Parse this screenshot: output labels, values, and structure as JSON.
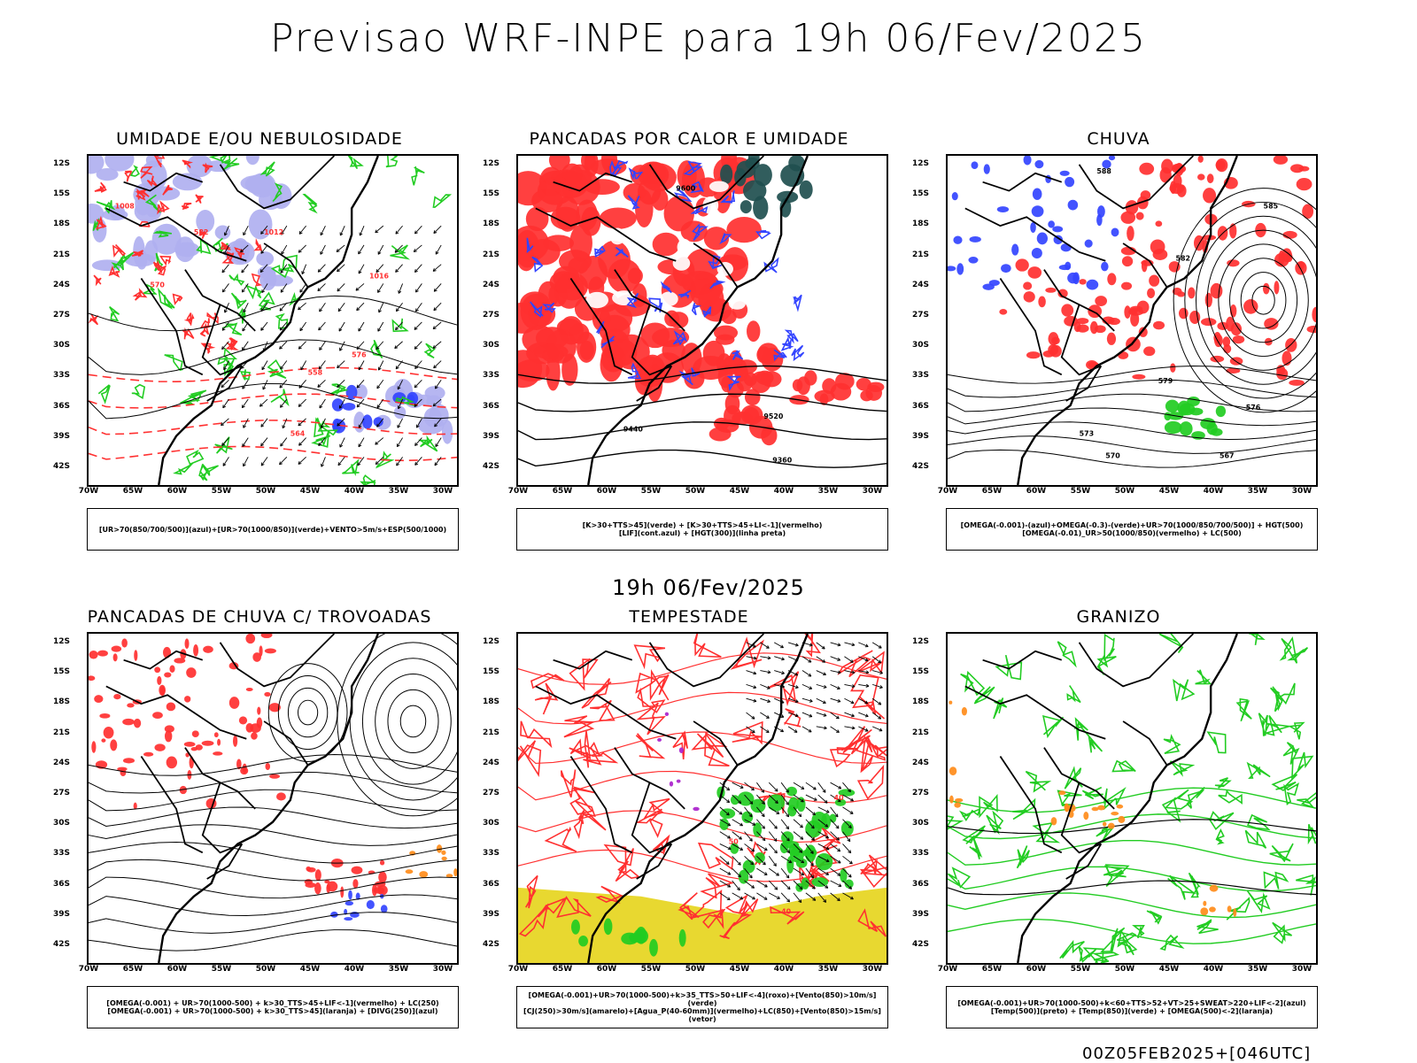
{
  "header": {
    "title": "Previsao WRF-INPE  para 19h 06/Fev/2025"
  },
  "mid_title": "19h 06/Fev/2025",
  "footer": "00Z05FEB2025+[046UTC]",
  "axes": {
    "lat_labels": [
      "12S",
      "15S",
      "18S",
      "21S",
      "24S",
      "27S",
      "30S",
      "33S",
      "36S",
      "39S",
      "42S"
    ],
    "lon_labels": [
      "70W",
      "65W",
      "60W",
      "55W",
      "50W",
      "45W",
      "40W",
      "35W",
      "30W"
    ]
  },
  "colors": {
    "red": "#ff3030",
    "green": "#22cc22",
    "blue": "#3344ff",
    "lavender": "#b0b0f0",
    "yellow": "#e8d830",
    "teal": "#1f4f4f",
    "orange": "#ff8c1a",
    "black": "#000000"
  },
  "panels": [
    {
      "title": "UMIDADE E/OU NEBULOSIDADE",
      "legend": [
        "[UR>70(850/700/500)](azul)+[UR>70(1000/850)](verde)+VENTO>5m/s+ESP(500/1000)"
      ],
      "contour_labels": [
        "1008",
        "1012",
        "1016",
        "570",
        "576",
        "564",
        "558",
        "582"
      ]
    },
    {
      "title": "PANCADAS POR CALOR E UMIDADE",
      "legend": [
        "[K>30+TTS>45](verde) + [K>30+TTS>45+LI<-1](vermelho)",
        "[LIF](cont.azul) + [HGT(300)](linha preta)"
      ],
      "contour_labels": [
        "9600",
        "9520",
        "9440",
        "9360"
      ]
    },
    {
      "title": "CHUVA",
      "legend": [
        "[OMEGA(-0.001)-(azul)+OMEGA(-0.3)-(verde)+UR>70(1000/850/700/500)] + HGT(500)",
        "[OMEGA(-0.01)_UR>50(1000/850)(vermelho) + LC(500)"
      ],
      "contour_labels": [
        "588",
        "585",
        "582",
        "579",
        "576",
        "573",
        "570",
        "567"
      ]
    },
    {
      "title": "PANCADAS DE CHUVA C/ TROVOADAS",
      "legend": [
        "[OMEGA(-0.001) + UR>70(1000-500) + k>30_TTS>45+LIF<-1](vermelho) + LC(250)",
        "[OMEGA(-0.001) + UR>70(1000-500) + k>30_TTS>45](laranja) + [DIVG(250)](azul)"
      ],
      "contour_labels": []
    },
    {
      "title": "TEMPESTADE",
      "legend": [
        "[OMEGA(-0.001)+UR>70(1000-500)+k>35_TTS>50+LIF<-4](roxo)+[Vento(850)>10m/s](verde)",
        "[CJ(250)>30m/s](amarelo)+[Agua_P(40-60mm)](vermelho)+LC(850)+[Vento(850)>15m/s](vetor)"
      ],
      "contour_labels": [
        "40",
        "50",
        "40"
      ]
    },
    {
      "title": "GRANIZO",
      "legend": [
        "[OMEGA(-0.001)+UR>70(1000-500)+k<60+TTS>52+VT>25+SWEAT>220+LIF<-2](azul)",
        "[Temp(500)](preto) + [Temp(850)](verde) + [OMEGA(500)<-2](laranja)"
      ],
      "contour_labels": []
    }
  ]
}
